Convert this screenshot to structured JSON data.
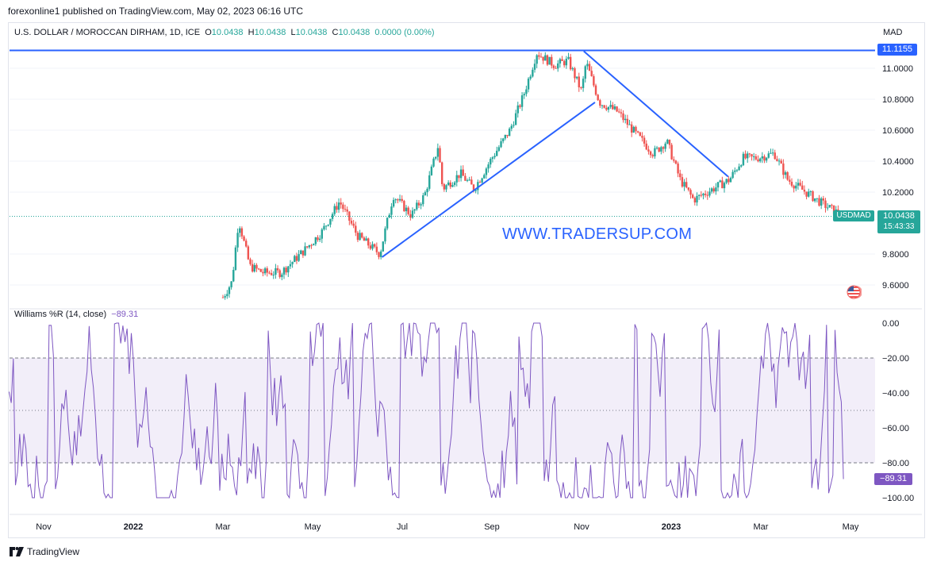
{
  "header": {
    "published": "forexonline1 published on TradingView.com, May 02, 2023 06:16 UTC"
  },
  "legend": {
    "symbol": "U.S. DOLLAR / MOROCCAN DIRHAM, 1D, ICE",
    "o_label": "O",
    "o_value": "10.0438",
    "h_label": "H",
    "h_value": "10.0438",
    "l_label": "L",
    "l_value": "10.0438",
    "c_label": "C",
    "c_value": "10.0438",
    "change": "0.0000 (0.00%)"
  },
  "currency": "MAD",
  "ticker": "USDMAD",
  "last_price": "10.0438",
  "countdown": "15:43:33",
  "resistance_label": "11.1155",
  "watermark": "WWW.TRADERSUP.COM",
  "indicator": {
    "name": "Williams %R (14, close)",
    "value": "−89.31",
    "axis_value": "−89.31"
  },
  "brand": "TradingView",
  "colors": {
    "up": "#26a69a",
    "down": "#ef5350",
    "trendline": "#2962ff",
    "indicator": "#7e57c2"
  },
  "chart_data": [
    {
      "type": "candlestick",
      "title": "U.S. DOLLAR / MOROCCAN DIRHAM, 1D, ICE",
      "y_ticks": [
        "11.0000",
        "10.8000",
        "10.6000",
        "10.4000",
        "10.2000",
        "9.8000",
        "9.6000"
      ],
      "ylim": [
        9.53,
        11.27
      ],
      "x_ticks": [
        "Nov",
        "2022",
        "Mar",
        "May",
        "Jul",
        "Sep",
        "Nov",
        "2023",
        "Mar",
        "May"
      ],
      "x_tick_months": [
        0,
        2,
        4,
        6,
        8,
        10,
        12,
        14,
        16,
        18
      ],
      "resistance": 11.1155,
      "last": 10.0438,
      "trendlines": [
        {
          "from": [
            7.55,
            9.78
          ],
          "to": [
            12.3,
            10.78
          ]
        },
        {
          "from": [
            12.05,
            11.11
          ],
          "to": [
            15.27,
            10.3
          ]
        }
      ],
      "price_path": [
        [
          4.0,
          9.52
        ],
        [
          4.2,
          9.62
        ],
        [
          4.35,
          10.02
        ],
        [
          4.6,
          9.72
        ],
        [
          4.9,
          9.68
        ],
        [
          5.3,
          9.68
        ],
        [
          5.8,
          9.82
        ],
        [
          6.2,
          9.94
        ],
        [
          6.6,
          10.14
        ],
        [
          7.0,
          9.92
        ],
        [
          7.5,
          9.8
        ],
        [
          7.8,
          10.18
        ],
        [
          8.2,
          10.05
        ],
        [
          8.5,
          10.18
        ],
        [
          8.8,
          10.5
        ],
        [
          8.9,
          10.22
        ],
        [
          9.3,
          10.32
        ],
        [
          9.6,
          10.22
        ],
        [
          10.0,
          10.42
        ],
        [
          10.4,
          10.6
        ],
        [
          10.7,
          10.82
        ],
        [
          11.0,
          11.1
        ],
        [
          11.4,
          11.02
        ],
        [
          11.7,
          11.05
        ],
        [
          12.0,
          10.85
        ],
        [
          12.1,
          11.04
        ],
        [
          12.4,
          10.78
        ],
        [
          12.8,
          10.72
        ],
        [
          13.2,
          10.58
        ],
        [
          13.6,
          10.45
        ],
        [
          13.9,
          10.53
        ],
        [
          14.2,
          10.28
        ],
        [
          14.5,
          10.15
        ],
        [
          14.8,
          10.2
        ],
        [
          15.3,
          10.28
        ],
        [
          15.6,
          10.42
        ],
        [
          15.9,
          10.42
        ],
        [
          16.3,
          10.45
        ],
        [
          16.6,
          10.28
        ],
        [
          17.0,
          10.2
        ],
        [
          17.4,
          10.12
        ],
        [
          17.8,
          10.05
        ]
      ]
    },
    {
      "type": "line",
      "title": "Williams %R (14, close)",
      "y_ticks": [
        "0.00",
        "−20.00",
        "−40.00",
        "−60.00",
        "−80.00",
        "−100.00"
      ],
      "ylim": [
        -100,
        0
      ],
      "bands": [
        -20,
        -50,
        -80
      ],
      "last": -89.31
    }
  ]
}
